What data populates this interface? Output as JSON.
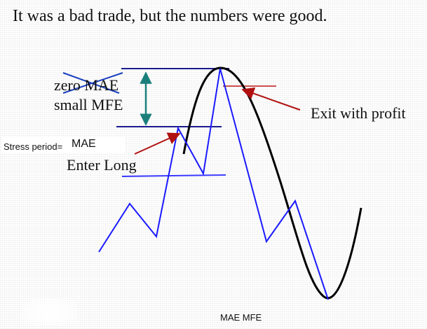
{
  "headline": "It was a bad trade, but the numbers were good.",
  "labels": {
    "zero_mae": "zero MAE",
    "small_mfe": "small MFE",
    "exit_with_profit": "Exit with profit",
    "enter_long": "Enter Long",
    "stress_period": "Stress period=",
    "stress_value": "MAE",
    "footer": "MAE MFE"
  },
  "colors": {
    "price_line": "#1a1aff",
    "level_line": "#1a1a8c",
    "sine_curve": "#000000",
    "arrows": "#b01010",
    "range_arrow": "#1a7f7a",
    "strike": "#1a3fbf",
    "text": "#111111"
  }
}
